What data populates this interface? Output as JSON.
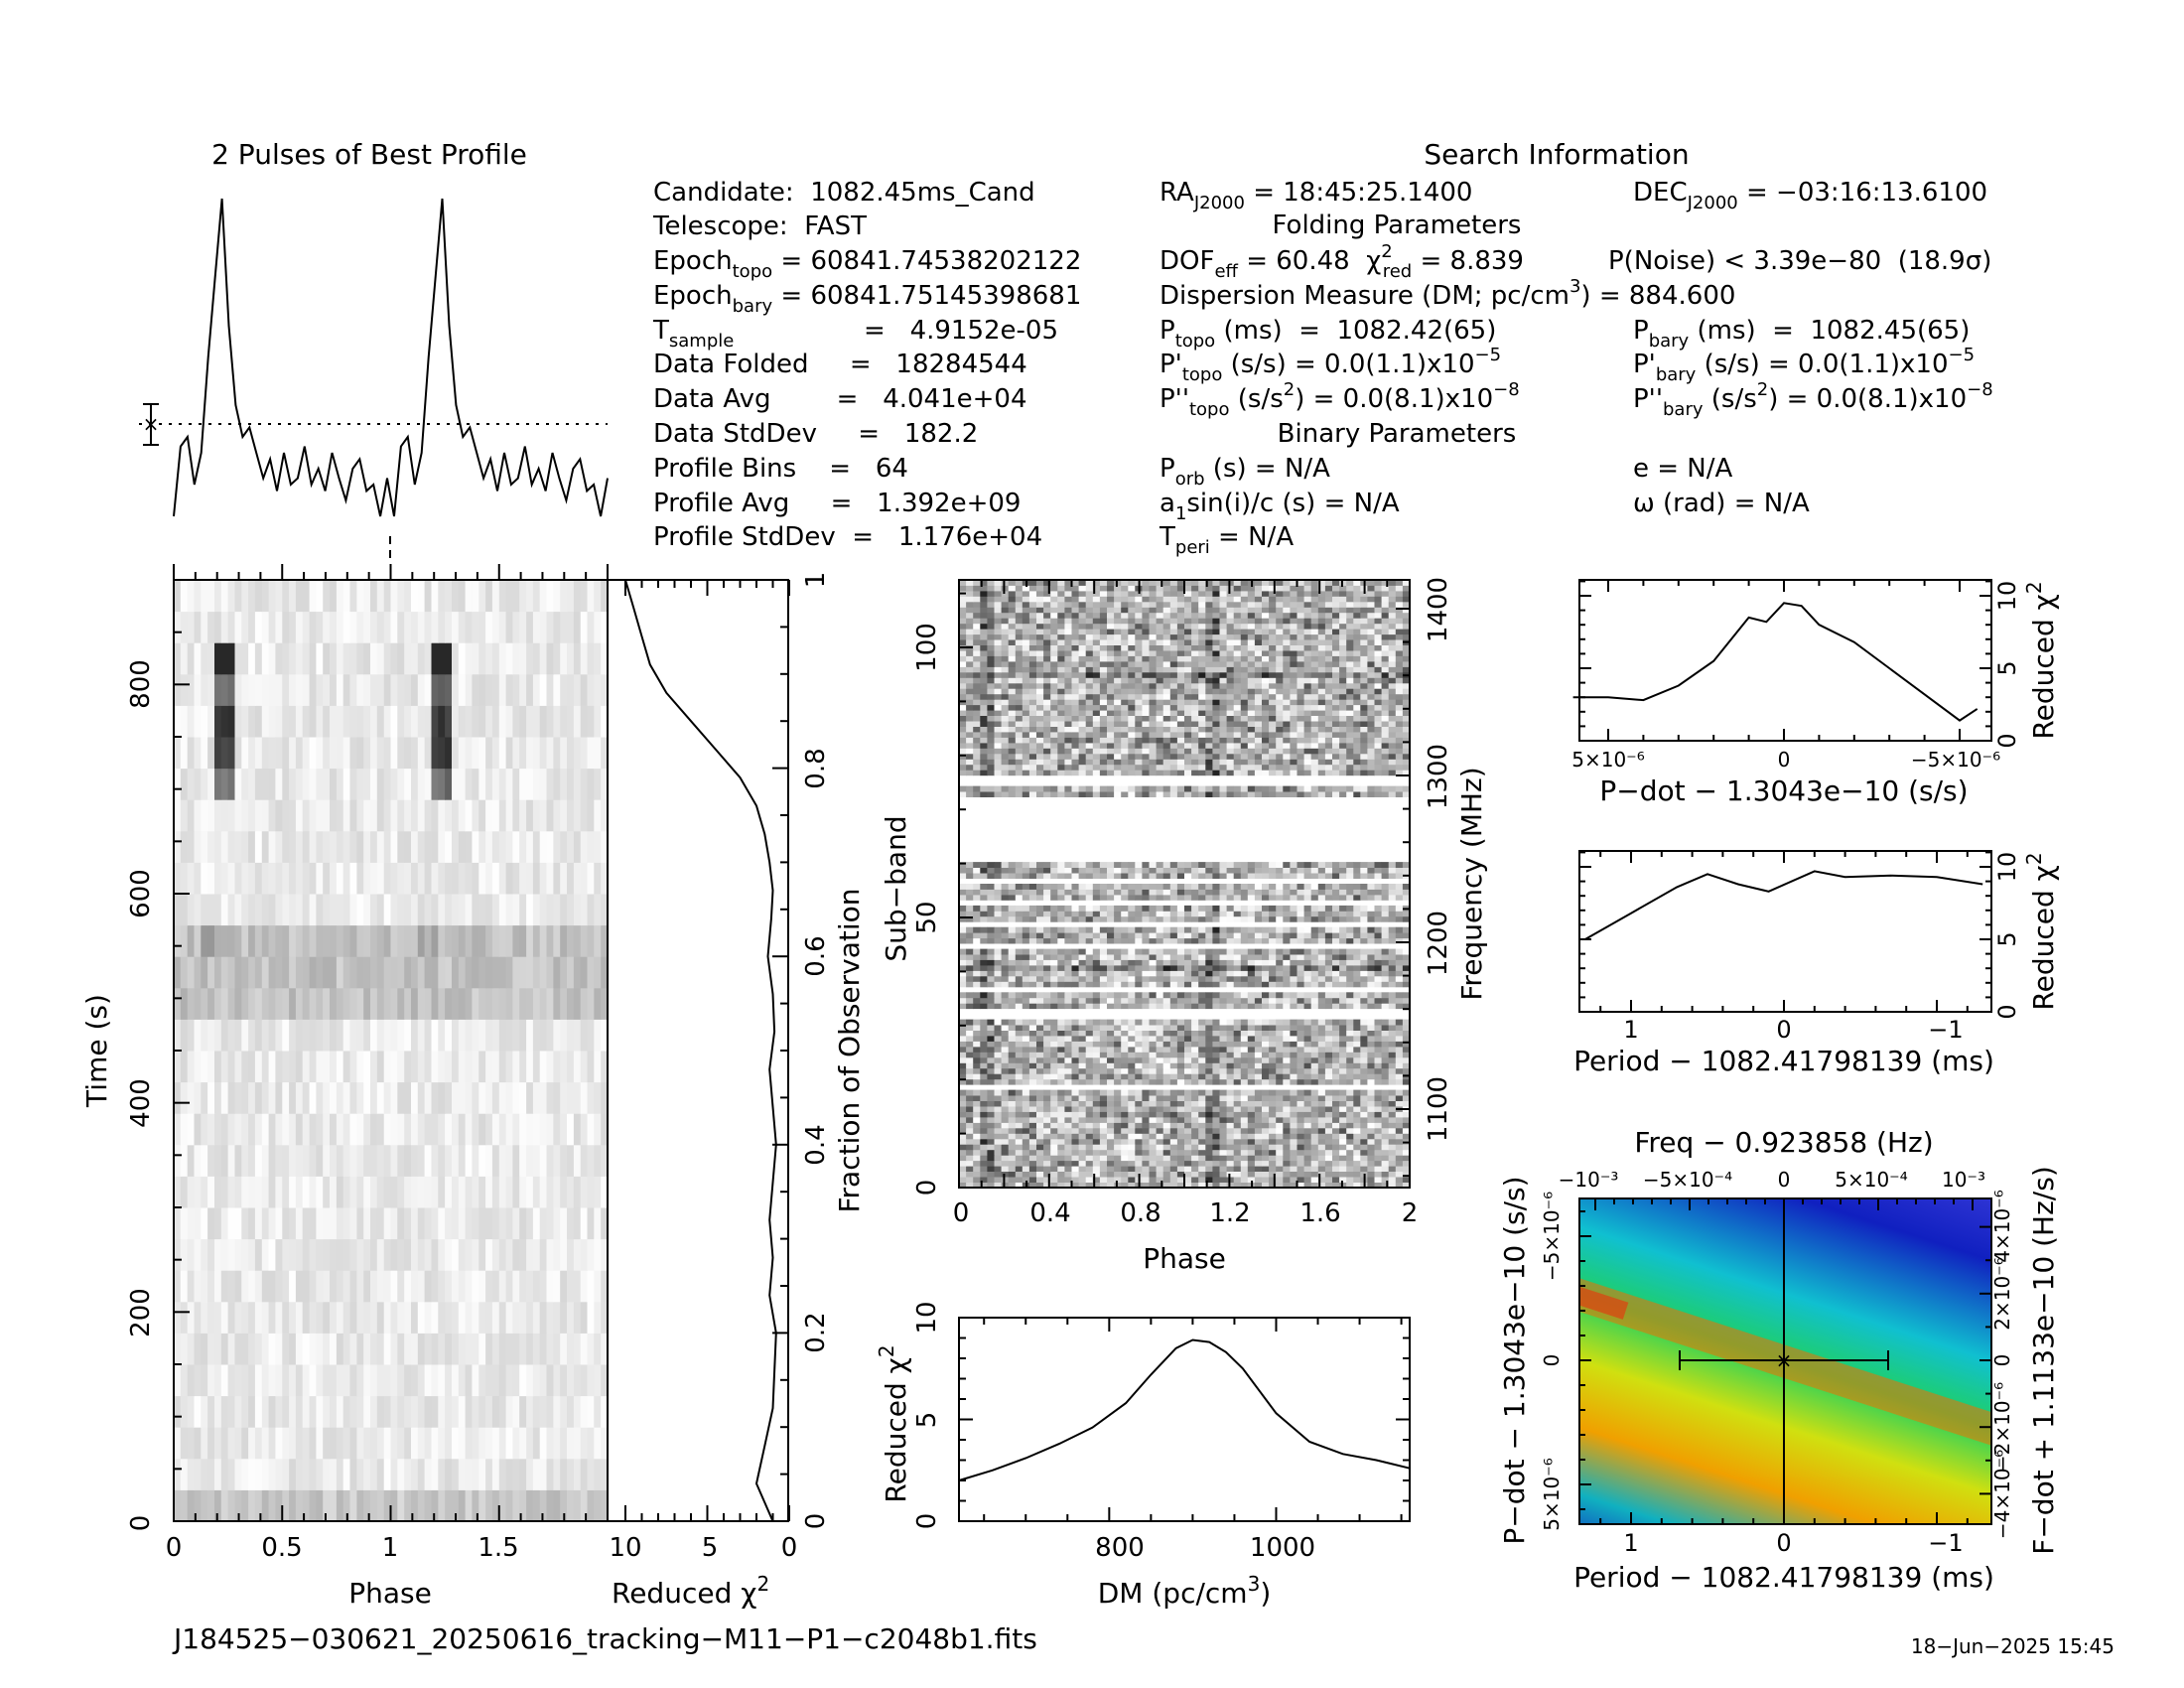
{
  "profile_title": "2 Pulses of Best Profile",
  "search_title": "Search Information",
  "folding_title": "Folding Parameters",
  "binary_title": "Binary Parameters",
  "info": {
    "candidate": "Candidate:  1082.45ms_Cand",
    "telescope": "Telescope:  FAST",
    "epoch_topo_a": "Epoch",
    "epoch_topo_sub": "topo",
    "epoch_topo_b": " = 60841.74538202122",
    "epoch_bary_a": "Epoch",
    "epoch_bary_sub": "bary",
    "epoch_bary_b": " = 60841.75145398681",
    "tsample_a": "T",
    "tsample_sub": "sample",
    "tsample_b": "=   4.9152e-05",
    "data_folded": "Data Folded     =   18284544",
    "data_avg": "Data Avg        =   4.041e+04",
    "data_stddev": "Data StdDev     =   182.2",
    "profile_bins": "Profile Bins    =   64",
    "profile_avg": "Profile Avg     =   1.392e+09",
    "profile_stddev": "Profile StdDev  =   1.176e+04"
  },
  "search": {
    "ra_a": "RA",
    "ra_sub": "J2000",
    "ra_b": " = 18:45:25.1400",
    "dec_a": "DEC",
    "dec_sub": "J2000",
    "dec_b": " = −03:16:13.6100",
    "dof_a": "DOF",
    "dof_sub": "eff",
    "dof_b": " = 60.48  ",
    "chi_sym": "χ",
    "chi_sup": "2",
    "chi_sub": "red",
    "chi_val": " = 8.839",
    "pnoise": "P(Noise) < 3.39e−80  (18.9σ)",
    "dm_a": "Dispersion Measure (DM; pc/cm",
    "dm_sup": "3",
    "dm_b": ") = 884.600",
    "ptopo_a": "P",
    "ptopo_sub": "topo",
    "ptopo_b": " (ms)  =  1082.42(65)",
    "pbary_a": "P",
    "pbary_sub": "bary",
    "pbary_b": " (ms)  =  1082.45(65)",
    "pdtopo_a": "P'",
    "pdtopo_sub": "topo",
    "pdtopo_b": " (s/s) = 0.0(1.1)x10",
    "pdtopo_sup": "−5",
    "pdbary_a": "P'",
    "pdbary_sub": "bary",
    "pdbary_b": " (s/s) = 0.0(1.1)x10",
    "pdbary_sup": "−5",
    "pddtopo_a": "P''",
    "pddtopo_sub": "topo",
    "pddtopo_b": " (s/s",
    "pddtopo_sup1": "2",
    "pddtopo_c": ") = 0.0(8.1)x10",
    "pddtopo_sup2": "−8",
    "pddbary_a": "P''",
    "pddbary_sub": "bary",
    "pddbary_b": " (s/s",
    "pddbary_sup1": "2",
    "pddbary_c": ") = 0.0(8.1)x10",
    "pddbary_sup2": "−8",
    "porb_a": "P",
    "porb_sub": "orb",
    "porb_b": " (s) = N/A",
    "e": "e = N/A",
    "a1_a": "a",
    "a1_sub": "1",
    "a1_b": "sin(i)/c (s) = N/A",
    "omega": "ω (rad) = N/A",
    "tperi_a": "T",
    "tperi_sub": "peri",
    "tperi_b": " = N/A"
  },
  "labels": {
    "time_axis": "Time (s)",
    "phase_axis": "Phase",
    "redchi_axis": "Reduced ",
    "chi": "χ",
    "two": "2",
    "fraction_axis": "Fraction of Observation",
    "subband_axis": "Sub−band",
    "frequency_axis": "Frequency (MHz)",
    "dm_axis_a": "DM (pc/cm",
    "dm_axis_sup": "3",
    "dm_axis_b": ")",
    "pdot_axis": "P−dot − 1.3043e−10 (s/s)",
    "period_axis": "Period − 1082.41798139 (ms)",
    "freq_axis": "Freq − 0.923858 (Hz)",
    "fdot_axis": "F−dot + 1.1133e−10 (Hz/s)",
    "pdot_vert_axis": "P−dot − 1.3043e−10 (s/s)"
  },
  "ticks": {
    "time": [
      "0",
      "200",
      "400",
      "600",
      "800"
    ],
    "phase": [
      "0",
      "0.5",
      "1",
      "1.5"
    ],
    "redchi": [
      "10",
      "5",
      "0"
    ],
    "fraction": [
      "0",
      "0.2",
      "0.4",
      "0.6",
      "0.8",
      "1"
    ],
    "subband": [
      "0",
      "50",
      "100"
    ],
    "freq": [
      "1100",
      "1200",
      "1300",
      "1400"
    ],
    "phase2": [
      "0",
      "0.4",
      "0.8",
      "1.2",
      "1.6",
      "2"
    ],
    "dm": [
      "800",
      "1000"
    ],
    "chi10": [
      "0",
      "5",
      "10"
    ],
    "pdot_top": [
      "5×10⁻⁶",
      "0",
      "−5×10⁻⁶"
    ],
    "period": [
      "1",
      "0",
      "−1"
    ],
    "freqtop": [
      "−10⁻³",
      "−5×10⁻⁴",
      "0",
      "5×10⁻⁴",
      "10⁻³"
    ],
    "pdot_left": [
      "−5×10⁻⁶",
      "0",
      "5×10⁻⁶"
    ],
    "fdot_right": [
      "4×10⁻⁶",
      "2×10⁻⁶",
      "0",
      "−2×10⁻⁶",
      "−4×10⁻⁶"
    ]
  },
  "filename": "J184525−030621_20250616_tracking−M11−P1−c2048b1.fits",
  "date": "18−Jun−2025 15:45",
  "chart_data": [
    {
      "type": "line",
      "title": "2 Pulses of Best Profile",
      "x": "phase 0-2",
      "values": [
        0.0,
        0.22,
        0.25,
        0.1,
        0.2,
        0.5,
        0.75,
        1.0,
        0.6,
        0.35,
        0.25,
        0.28,
        0.2,
        0.12,
        0.18,
        0.08,
        0.2,
        0.1,
        0.12,
        0.22,
        0.1,
        0.15,
        0.08,
        0.2,
        0.12,
        0.05,
        0.15,
        0.18,
        0.08,
        0.1,
        0.0,
        0.12
      ]
    },
    {
      "type": "line",
      "xlabel": "Reduced χ²",
      "ylabel": "Fraction of Observation",
      "x": [
        10,
        9.5,
        9,
        8.5,
        7.5,
        6,
        4.5,
        3,
        2,
        1.5,
        1.2,
        1.0,
        1.1,
        1.3,
        1.0,
        0.9,
        1.2,
        1.0,
        0.8,
        1.0,
        1.2,
        1.0,
        1.2,
        0.8,
        1.0,
        1.5,
        2.0,
        1.0
      ],
      "y": [
        1.0,
        0.97,
        0.94,
        0.91,
        0.88,
        0.85,
        0.82,
        0.79,
        0.76,
        0.73,
        0.7,
        0.67,
        0.64,
        0.6,
        0.56,
        0.52,
        0.48,
        0.44,
        0.4,
        0.36,
        0.32,
        0.28,
        0.24,
        0.2,
        0.12,
        0.08,
        0.04,
        0.0
      ]
    },
    {
      "type": "line",
      "xlabel": "DM (pc/cm³)",
      "ylabel": "Reduced χ²",
      "x": [
        620,
        660,
        700,
        740,
        780,
        820,
        850,
        880,
        900,
        920,
        940,
        960,
        980,
        1000,
        1040,
        1080,
        1120,
        1160
      ],
      "y": [
        2.0,
        2.5,
        3.1,
        3.8,
        4.6,
        5.8,
        7.2,
        8.5,
        8.9,
        8.8,
        8.3,
        7.5,
        6.4,
        5.3,
        3.9,
        3.3,
        3.0,
        2.6
      ],
      "ylim": [
        0,
        10
      ]
    },
    {
      "type": "line",
      "xlabel": "P−dot − 1.3043e−10 (s/s)",
      "ylabel": "Reduced χ²",
      "x": [
        6e-06,
        5e-06,
        4e-06,
        3e-06,
        2e-06,
        1e-06,
        5e-07,
        0,
        -5e-07,
        -1e-06,
        -2e-06,
        -3e-06,
        -4e-06,
        -5e-06,
        -5.5e-06
      ],
      "y": [
        3.0,
        3.0,
        2.8,
        3.8,
        5.5,
        8.5,
        8.2,
        9.5,
        9.3,
        8.0,
        6.8,
        5.0,
        3.2,
        1.4,
        2.2
      ],
      "ylim": [
        0,
        11
      ]
    },
    {
      "type": "line",
      "xlabel": "Period − 1082.41798139 (ms)",
      "ylabel": "Reduced χ²",
      "x": [
        1.3,
        1.0,
        0.7,
        0.5,
        0.3,
        0.1,
        -0.2,
        -0.4,
        -0.7,
        -1.0,
        -1.3
      ],
      "y": [
        5.0,
        6.8,
        8.6,
        9.5,
        8.8,
        8.3,
        9.7,
        9.3,
        9.4,
        9.3,
        8.8
      ],
      "ylim": [
        0,
        11
      ]
    },
    {
      "type": "heatmap",
      "xlabel": "Period − 1082.41798139 (ms)",
      "ylabel": "P−dot − 1.3043e−10 (s/s)"
    }
  ]
}
